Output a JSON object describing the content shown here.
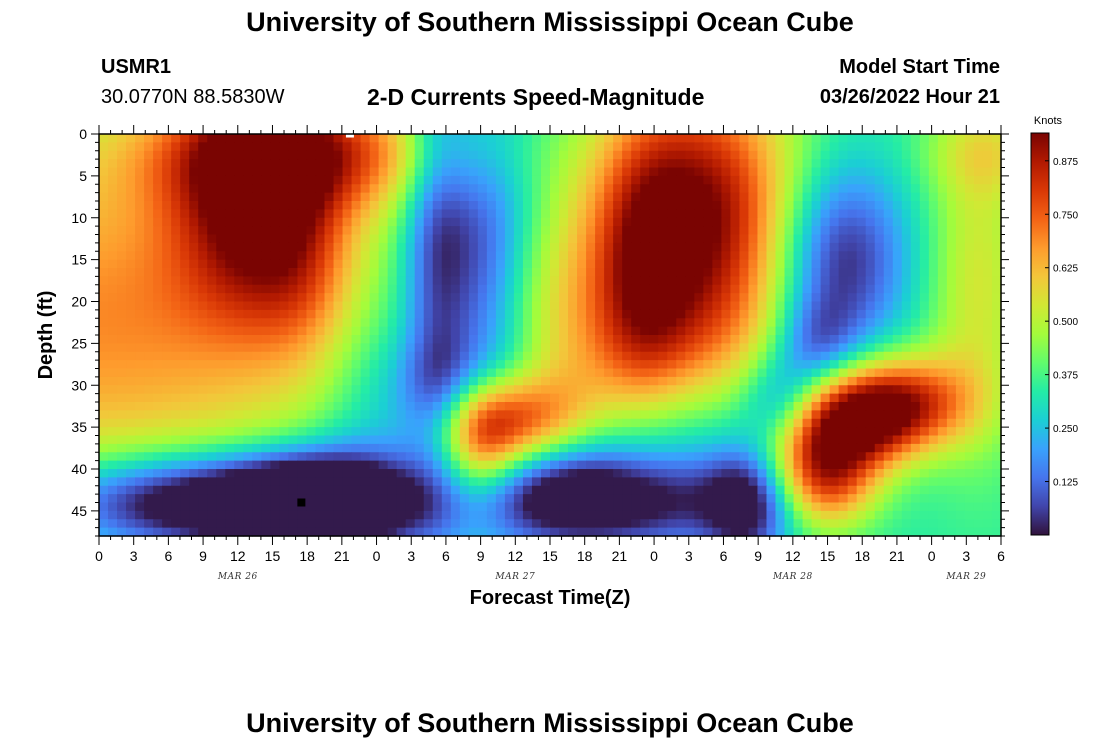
{
  "header": {
    "title": "University of Southern Mississippi Ocean Cube",
    "station_id": "USMR1",
    "station_coords": "30.0770N  88.5830W",
    "plot_subtitle": "2-D Currents Speed-Magnitude",
    "model_start_label": "Model Start Time",
    "model_start_value": "03/26/2022 Hour 21"
  },
  "footer": {
    "title": "University of Southern Mississippi Ocean Cube"
  },
  "colors": {
    "colormap": [
      "#30123b",
      "#4145ab",
      "#4675ed",
      "#39a2fc",
      "#1bcfd4",
      "#24eca6",
      "#61fc6c",
      "#a4fc3b",
      "#d1e834",
      "#f3c63a",
      "#fe9b2d",
      "#f36315",
      "#d93806",
      "#b11901",
      "#7a0402"
    ]
  },
  "chart_data": {
    "type": "heatmap",
    "xlabel": "Forecast Time(Z)",
    "ylabel": "Depth (ft)",
    "x_tick_labels": [
      "0",
      "3",
      "6",
      "9",
      "12",
      "15",
      "18",
      "21",
      "0",
      "3",
      "6",
      "9",
      "12",
      "15",
      "18",
      "21",
      "0",
      "3",
      "6",
      "9",
      "12",
      "15",
      "18",
      "21",
      "0",
      "3",
      "6"
    ],
    "x_day_labels": [
      {
        "label": "MAR 26",
        "tick_index": 4
      },
      {
        "label": "MAR 27",
        "tick_index": 12
      },
      {
        "label": "MAR 28",
        "tick_index": 20
      },
      {
        "label": "MAR 29",
        "tick_index": 25
      }
    ],
    "y_tick_values": [
      0,
      5,
      10,
      15,
      20,
      25,
      30,
      35,
      40,
      45
    ],
    "ylim": [
      0,
      48
    ],
    "x_range_hours": [
      0,
      78
    ],
    "colorbar": {
      "title": "Knots",
      "ticks": [
        "0.875",
        "0.750",
        "0.625",
        "0.500",
        "0.375",
        "0.250",
        "0.125"
      ],
      "range": [
        0,
        0.94
      ]
    },
    "blobs": [
      {
        "t": 0,
        "d": 22,
        "st": 16,
        "sd": 16,
        "a": 0.35
      },
      {
        "t": 14,
        "d": 8,
        "st": 5,
        "sd": 10,
        "a": 0.5
      },
      {
        "t": 18,
        "d": 2,
        "st": 10,
        "sd": 5,
        "a": 0.35
      },
      {
        "t": 18,
        "d": 18,
        "st": 3,
        "sd": 8,
        "a": 0.1
      },
      {
        "t": 10,
        "d": 44,
        "st": 10,
        "sd": 4,
        "a": -0.55
      },
      {
        "t": 19,
        "d": 44,
        "st": 5,
        "sd": 4,
        "a": -0.45
      },
      {
        "t": 24,
        "d": 34,
        "st": 4,
        "sd": 12,
        "a": -0.12
      },
      {
        "t": 29,
        "d": 12,
        "st": 2,
        "sd": 20,
        "a": -0.2
      },
      {
        "t": 32,
        "d": 30,
        "st": 4,
        "sd": 4,
        "a": -0.2
      },
      {
        "t": 33,
        "d": 16,
        "st": 3.5,
        "sd": 14,
        "a": -0.38
      },
      {
        "t": 33,
        "d": 36,
        "st": 2.5,
        "sd": 6,
        "a": 0.35
      },
      {
        "t": 36,
        "d": 34,
        "st": 4,
        "sd": 4,
        "a": 0.4
      },
      {
        "t": 38,
        "d": 20,
        "st": 6,
        "sd": 10,
        "a": 0.2
      },
      {
        "t": 41,
        "d": 32,
        "st": 4,
        "sd": 6,
        "a": 0.1
      },
      {
        "t": 44,
        "d": 44,
        "st": 9,
        "sd": 4,
        "a": -0.3
      },
      {
        "t": 40,
        "d": 42,
        "st": 4,
        "sd": 4,
        "a": -0.15
      },
      {
        "t": 52,
        "d": 10,
        "st": 6,
        "sd": 12,
        "a": 0.6
      },
      {
        "t": 51,
        "d": 26,
        "st": 7,
        "sd": 6,
        "a": 0.12
      },
      {
        "t": 47,
        "d": 18,
        "st": 3,
        "sd": 12,
        "a": 0.25
      },
      {
        "t": 46,
        "d": 38,
        "st": 7,
        "sd": 8,
        "a": -0.15
      },
      {
        "t": 56,
        "d": 44,
        "st": 2.5,
        "sd": 5,
        "a": -0.3
      },
      {
        "t": 59,
        "d": 32,
        "st": 2.5,
        "sd": 4,
        "a": -0.25
      },
      {
        "t": 62,
        "d": 25,
        "st": 2.5,
        "sd": 4,
        "a": -0.2
      },
      {
        "t": 64,
        "d": 15,
        "st": 4,
        "sd": 8,
        "a": -0.35
      },
      {
        "t": 62,
        "d": 38,
        "st": 4,
        "sd": 4,
        "a": 0.2
      },
      {
        "t": 65,
        "d": 34,
        "st": 4,
        "sd": 4,
        "a": 0.5
      },
      {
        "t": 70,
        "d": 32,
        "st": 4,
        "sd": 4,
        "a": 0.4
      },
      {
        "t": 63,
        "d": 42,
        "st": 3,
        "sd": 4,
        "a": 0.35
      },
      {
        "t": 76,
        "d": 18,
        "st": 3,
        "sd": 14,
        "a": 0.2
      },
      {
        "t": 77,
        "d": 2,
        "st": 4,
        "sd": 4,
        "a": 0.15
      }
    ],
    "base_value": 0.34,
    "markers": [
      {
        "symbol": "square",
        "color": "#000000",
        "t": 17.5,
        "d": 44
      },
      {
        "symbol": "square",
        "color": "#ffffff",
        "t": 21.7,
        "d": 0.3
      }
    ]
  }
}
